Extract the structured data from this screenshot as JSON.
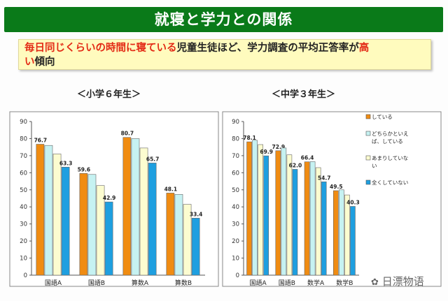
{
  "banner_title": "就寝と学力との関係",
  "statement": {
    "line1_red": "毎日同じくらいの時間に寝ている",
    "line1_black": "児童生徒ほど、学力調査の平均正答率が",
    "line1_red_end": "高",
    "line2_red": "い",
    "line2_black": "傾向"
  },
  "watermark": "日漂物语",
  "colors": {
    "always": "#f08c12",
    "somewhat": "#c6f2f2",
    "not_much": "#fcfcd0",
    "never": "#1e9fe0"
  },
  "chart_data": [
    {
      "type": "bar",
      "title": "＜小学６年生＞",
      "categories": [
        "国語A",
        "国語B",
        "算数A",
        "算数B"
      ],
      "ylim": [
        0,
        90
      ],
      "yticks": [
        0,
        10,
        20,
        30,
        40,
        50,
        60,
        70,
        80,
        90
      ],
      "series": [
        {
          "name": "している",
          "values": [
            76.7,
            59.6,
            80.7,
            48.1
          ],
          "labels": [
            "76.7",
            "59.6",
            "80.7",
            "48.1"
          ]
        },
        {
          "name": "どちらかといえば、している",
          "values": [
            76.0,
            59.0,
            80.0,
            47.3
          ],
          "labels": [
            "",
            "",
            "",
            ""
          ]
        },
        {
          "name": "あまりしていない",
          "values": [
            71.0,
            52.5,
            74.5,
            41.5
          ],
          "labels": [
            "",
            "",
            "",
            ""
          ]
        },
        {
          "name": "全くしていない",
          "values": [
            63.3,
            42.9,
            65.7,
            33.4
          ],
          "labels": [
            "63.3",
            "42.9",
            "65.7",
            "33.4"
          ]
        }
      ],
      "grid": false,
      "legend": "none"
    },
    {
      "type": "bar",
      "title": "＜中学３年生＞",
      "categories": [
        "国語A",
        "国語B",
        "数学A",
        "数学B"
      ],
      "ylim": [
        0,
        90
      ],
      "yticks": [
        0,
        10,
        20,
        30,
        40,
        50,
        60,
        70,
        80,
        90
      ],
      "series": [
        {
          "name": "している",
          "values": [
            78.1,
            72.9,
            66.4,
            49.5
          ],
          "labels": [
            "78.1",
            "72.9",
            "66.4",
            "49.5"
          ]
        },
        {
          "name": "どちらかといえば、している",
          "values": [
            79.0,
            74.5,
            66.5,
            50.0
          ],
          "labels": [
            "",
            "",
            "",
            ""
          ]
        },
        {
          "name": "あまりしていない",
          "values": [
            76.5,
            70.5,
            63.0,
            47.0
          ],
          "labels": [
            "",
            "",
            "",
            ""
          ]
        },
        {
          "name": "全くしていない",
          "values": [
            69.9,
            62.0,
            54.7,
            40.3
          ],
          "labels": [
            "69.9",
            "62.0",
            "54.7",
            "40.3"
          ]
        }
      ],
      "grid": false,
      "legend": "top-right",
      "legend_entries": [
        {
          "lines": [
            "している"
          ],
          "color_key": "always"
        },
        {
          "lines": [
            "どちらかといえ",
            "ば、している"
          ],
          "color_key": "somewhat"
        },
        {
          "lines": [
            "あまりしていな",
            "い"
          ],
          "color_key": "not_much"
        },
        {
          "lines": [
            "全くしていない"
          ],
          "color_key": "never"
        }
      ]
    }
  ]
}
